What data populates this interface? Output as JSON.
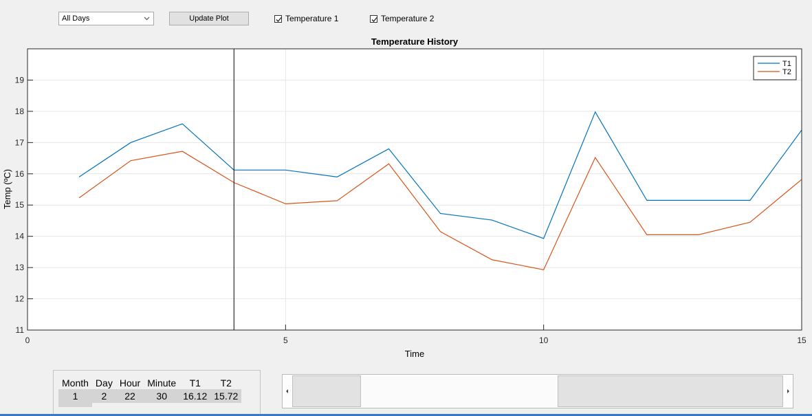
{
  "controls": {
    "days_select": "All Days",
    "update_button": "Update Plot",
    "temp1_label": "Temperature 1",
    "temp2_label": "Temperature 2",
    "temp1_checked": true,
    "temp2_checked": true
  },
  "chart_data": {
    "type": "line",
    "title": "Temperature History",
    "xlabel": "Time",
    "ylabel": "Temp (ºC)",
    "xlim": [
      0,
      15
    ],
    "ylim": [
      11,
      20
    ],
    "xticks": [
      0,
      5,
      10,
      15
    ],
    "yticks": [
      11,
      12,
      13,
      14,
      15,
      16,
      17,
      18,
      19
    ],
    "grid": true,
    "legend_position": "top-right",
    "cursor_x": 4,
    "x": [
      1,
      2,
      3,
      4,
      5,
      6,
      7,
      8,
      9,
      10,
      11,
      12,
      13,
      14,
      15
    ],
    "series": [
      {
        "name": "T1",
        "color": "#0072bd",
        "values": [
          15.9,
          17.0,
          17.6,
          16.12,
          16.12,
          15.9,
          16.8,
          14.73,
          14.52,
          13.93,
          17.98,
          15.15,
          15.15,
          15.15,
          17.4
        ]
      },
      {
        "name": "T2",
        "color": "#d95319",
        "values": [
          15.23,
          16.42,
          16.72,
          15.72,
          15.04,
          15.14,
          16.32,
          14.15,
          13.25,
          12.93,
          16.52,
          14.05,
          14.05,
          14.45,
          15.82
        ]
      }
    ]
  },
  "info_table": {
    "headers": [
      "Month",
      "Day",
      "Hour",
      "Minute",
      "T1",
      "T2"
    ],
    "row": [
      "1",
      "2",
      "22",
      "30",
      "16.12",
      "15.72"
    ]
  },
  "scrollbar": {
    "thumb_start_fraction": 0.14,
    "thumb_end_fraction": 0.54
  }
}
